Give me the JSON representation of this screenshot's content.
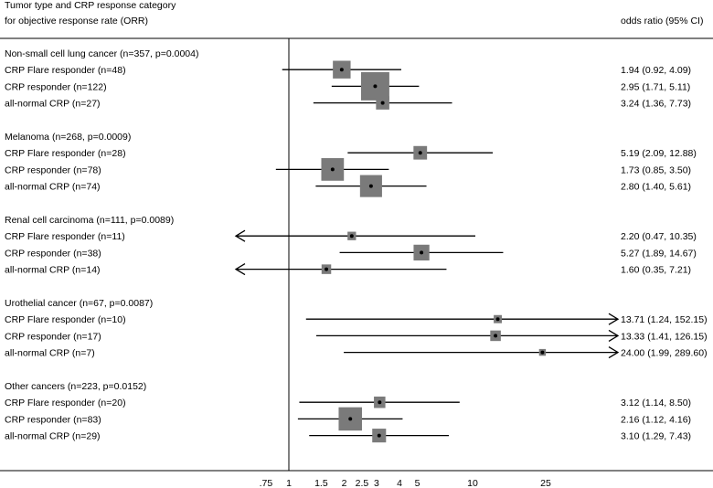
{
  "chart_data": {
    "type": "forest",
    "header_left": [
      "Tumor type and CRP response category",
      "for objective response rate (ORR)"
    ],
    "header_right": "odds ratio (95% CI)",
    "x_scale": "log",
    "x_ticks": [
      {
        "value": 0.75,
        "label": ".75"
      },
      {
        "value": 1,
        "label": "1"
      },
      {
        "value": 1.5,
        "label": "1.5"
      },
      {
        "value": 2,
        "label": "2"
      },
      {
        "value": 2.5,
        "label": "2.5"
      },
      {
        "value": 3,
        "label": "3"
      },
      {
        "value": 4,
        "label": "4"
      },
      {
        "value": 5,
        "label": "5"
      },
      {
        "value": 10,
        "label": "10"
      },
      {
        "value": 25,
        "label": "25"
      }
    ],
    "reference_line": 1,
    "groups": [
      {
        "label": "Non-small cell lung cancer (n=357, p=0.0004)",
        "rows": [
          {
            "label": "CRP Flare responder (n=48)",
            "or": 1.94,
            "lo": 0.92,
            "hi": 4.09,
            "text": "1.94 (0.92, 4.09)",
            "weight": 48
          },
          {
            "label": "CRP responder (n=122)",
            "or": 2.95,
            "lo": 1.71,
            "hi": 5.11,
            "text": "2.95 (1.71, 5.11)",
            "weight": 122
          },
          {
            "label": "all-normal CRP (n=27)",
            "or": 3.24,
            "lo": 1.36,
            "hi": 7.73,
            "text": "3.24 (1.36, 7.73)",
            "weight": 27
          }
        ]
      },
      {
        "label": "Melanoma (n=268, p=0.0009)",
        "rows": [
          {
            "label": "CRP Flare responder (n=28)",
            "or": 5.19,
            "lo": 2.09,
            "hi": 12.88,
            "text": "5.19 (2.09, 12.88)",
            "weight": 28
          },
          {
            "label": "CRP responder (n=78)",
            "or": 1.73,
            "lo": 0.85,
            "hi": 3.5,
            "text": "1.73 (0.85, 3.50)",
            "weight": 78
          },
          {
            "label": "all-normal CRP (n=74)",
            "or": 2.8,
            "lo": 1.4,
            "hi": 5.61,
            "text": "2.80 (1.40, 5.61)",
            "weight": 74
          }
        ]
      },
      {
        "label": "Renal cell carcinoma (n=111, p=0.0089)",
        "rows": [
          {
            "label": "CRP Flare responder (n=11)",
            "or": 2.2,
            "lo": 0.47,
            "hi": 10.35,
            "text": "2.20 (0.47, 10.35)",
            "weight": 11
          },
          {
            "label": "CRP responder (n=38)",
            "or": 5.27,
            "lo": 1.89,
            "hi": 14.67,
            "text": "5.27 (1.89, 14.67)",
            "weight": 38
          },
          {
            "label": "all-normal CRP (n=14)",
            "or": 1.6,
            "lo": 0.35,
            "hi": 7.21,
            "text": "1.60 (0.35, 7.21)",
            "weight": 14
          }
        ]
      },
      {
        "label": "Urothelial cancer (n=67, p=0.0087)",
        "rows": [
          {
            "label": "CRP Flare responder (n=10)",
            "or": 13.71,
            "lo": 1.24,
            "hi": 152.15,
            "text": "13.71 (1.24, 152.15)",
            "weight": 10
          },
          {
            "label": "CRP responder (n=17)",
            "or": 13.33,
            "lo": 1.41,
            "hi": 126.15,
            "text": "13.33 (1.41, 126.15)",
            "weight": 17
          },
          {
            "label": "all-normal CRP (n=7)",
            "or": 24.0,
            "lo": 1.99,
            "hi": 289.6,
            "text": "24.00 (1.99, 289.60)",
            "weight": 7
          }
        ]
      },
      {
        "label": "Other cancers (n=223, p=0.0152)",
        "rows": [
          {
            "label": "CRP Flare responder (n=20)",
            "or": 3.12,
            "lo": 1.14,
            "hi": 8.5,
            "text": "3.12 (1.14, 8.50)",
            "weight": 20
          },
          {
            "label": "CRP responder (n=83)",
            "or": 2.16,
            "lo": 1.12,
            "hi": 4.16,
            "text": "2.16 (1.12, 4.16)",
            "weight": 83
          },
          {
            "label": "all-normal CRP (n=29)",
            "or": 3.1,
            "lo": 1.29,
            "hi": 7.43,
            "text": "3.10 (1.29, 7.43)",
            "weight": 29
          }
        ]
      }
    ],
    "colors": {
      "box": "#7a7a7a",
      "line": "#000000",
      "point": "#000000"
    }
  }
}
